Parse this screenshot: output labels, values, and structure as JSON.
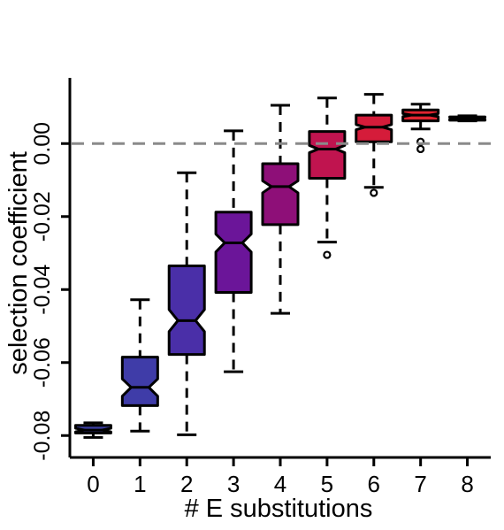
{
  "chart_data": {
    "type": "boxplot",
    "notched": true,
    "title": "",
    "xlabel": "# E substitutions",
    "ylabel": "selection coefficient",
    "xlim": [
      -0.5,
      8.5
    ],
    "ylim": [
      -0.086,
      0.018
    ],
    "yticks": [
      -0.08,
      -0.06,
      -0.04,
      -0.02,
      0.0
    ],
    "ytick_labels": [
      "-0.08",
      "-0.06",
      "-0.04",
      "-0.02",
      "0.00"
    ],
    "reference_line": {
      "y": 0.0,
      "style": "dashed",
      "color": "#8a8a8a"
    },
    "grid": false,
    "legend": "none",
    "categories": [
      "0",
      "1",
      "2",
      "3",
      "4",
      "5",
      "6",
      "7",
      "8"
    ],
    "boxes": [
      {
        "category": "0",
        "whisker_low": -0.0805,
        "q1": -0.0793,
        "median": -0.0785,
        "q3": -0.0772,
        "whisker_high": -0.0765,
        "notch_low": -0.079,
        "notch_high": -0.078,
        "outliers": [],
        "color": "#3b3d9e"
      },
      {
        "category": "1",
        "whisker_low": -0.0788,
        "q1": -0.0718,
        "median": -0.0668,
        "q3": -0.0585,
        "whisker_high": -0.0428,
        "notch_low": -0.0692,
        "notch_high": -0.0645,
        "outliers": [],
        "color": "#3f3ca8"
      },
      {
        "category": "2",
        "whisker_low": -0.0798,
        "q1": -0.0578,
        "median": -0.0485,
        "q3": -0.0335,
        "whisker_high": -0.008,
        "notch_low": -0.0515,
        "notch_high": -0.0455,
        "outliers": [],
        "color": "#4a2fa8"
      },
      {
        "category": "3",
        "whisker_low": -0.0625,
        "q1": -0.0408,
        "median": -0.0272,
        "q3": -0.0188,
        "whisker_high": 0.0035,
        "notch_low": -0.0297,
        "notch_high": -0.0248,
        "outliers": [],
        "color": "#6b1599"
      },
      {
        "category": "4",
        "whisker_low": -0.0465,
        "q1": -0.0222,
        "median": -0.0118,
        "q3": -0.0055,
        "whisker_high": 0.0105,
        "notch_low": -0.0135,
        "notch_high": -0.0102,
        "outliers": [],
        "color": "#8e0f78"
      },
      {
        "category": "5",
        "whisker_low": -0.027,
        "q1": -0.0095,
        "median": -0.0015,
        "q3": 0.0033,
        "whisker_high": 0.0125,
        "notch_low": -0.0025,
        "notch_high": -0.0005,
        "outliers": [
          -0.0305
        ],
        "color": "#c0144f"
      },
      {
        "category": "6",
        "whisker_low": -0.012,
        "q1": 0.0005,
        "median": 0.0045,
        "q3": 0.0078,
        "whisker_high": 0.0135,
        "notch_low": 0.0038,
        "notch_high": 0.0052,
        "outliers": [
          -0.0135
        ],
        "color": "#d51c3a"
      },
      {
        "category": "7",
        "whisker_low": 0.004,
        "q1": 0.0062,
        "median": 0.0078,
        "q3": 0.0092,
        "whisker_high": 0.0108,
        "notch_low": 0.0074,
        "notch_high": 0.0082,
        "outliers": [
          0.0005,
          -0.0015
        ],
        "color": "#e02430"
      },
      {
        "category": "8",
        "whisker_low": 0.0062,
        "q1": 0.0064,
        "median": 0.0069,
        "q3": 0.0073,
        "whisker_high": 0.0076,
        "notch_low": 0.0066,
        "notch_high": 0.0072,
        "outliers": [],
        "color": "#e5262d"
      }
    ]
  }
}
